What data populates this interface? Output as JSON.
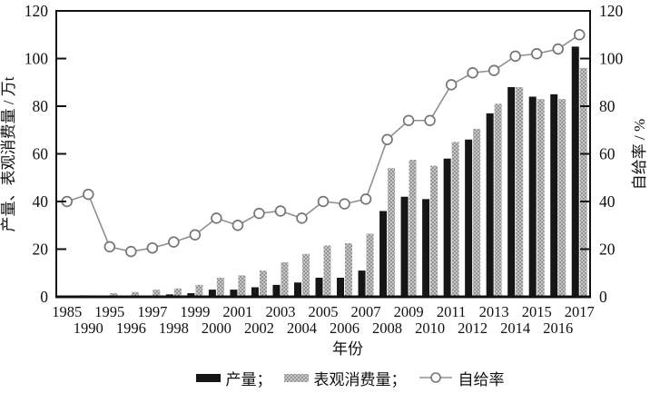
{
  "figure_title": "",
  "chart_data": {
    "type": "combo",
    "x_axis": {
      "label": "年份",
      "categories": [
        "1985",
        "1990",
        "1995",
        "1996",
        "1997",
        "1998",
        "1999",
        "2000",
        "2001",
        "2002",
        "2003",
        "2004",
        "2005",
        "2006",
        "2007",
        "2008",
        "2009",
        "2010",
        "2011",
        "2012",
        "2013",
        "2014",
        "2015",
        "2016",
        "2017"
      ],
      "stagger_rows": true
    },
    "left_axis": {
      "label": "产量、表观消费量 / 万t",
      "min": 0,
      "max": 120,
      "ticks": [
        0,
        20,
        40,
        60,
        80,
        100,
        120
      ]
    },
    "right_axis": {
      "label": "自给率 / %",
      "min": 0,
      "max": 120,
      "ticks": [
        0,
        20,
        40,
        60,
        80,
        100,
        120
      ]
    },
    "grid": false,
    "legend_position": "bottom",
    "series": [
      {
        "name": "产量",
        "kind": "bar",
        "axis": "left",
        "color": "#161616",
        "values": [
          0.4,
          0.6,
          0.3,
          0.4,
          0.5,
          1,
          1.5,
          3,
          3,
          4,
          5,
          6,
          8,
          8,
          11,
          36,
          42,
          41,
          58,
          66,
          77,
          88,
          84,
          85,
          105
        ]
      },
      {
        "name": "表观消费量",
        "kind": "bar",
        "axis": "left",
        "color": "#b5b5b5",
        "texture": "halftone-dots",
        "values": [
          0.4,
          0.6,
          1.5,
          2,
          3,
          3.5,
          5,
          8,
          9,
          11,
          14.5,
          18,
          21.5,
          22.5,
          26.5,
          54,
          57.5,
          55,
          65,
          70.5,
          81,
          88,
          83,
          83,
          96
        ]
      },
      {
        "name": "自给率",
        "kind": "line",
        "axis": "right",
        "color": "#8f8f8f",
        "marker": "open-circle",
        "marker_fill": "#ffffff",
        "marker_stroke": "#757575",
        "values": [
          40,
          43,
          21,
          19,
          20.5,
          23,
          26,
          33,
          30,
          35,
          36,
          33,
          40,
          39,
          41,
          66,
          74,
          74,
          89,
          94,
          95,
          101,
          102,
          104,
          110
        ]
      }
    ]
  },
  "legend": {
    "items": [
      {
        "label": "产量；",
        "swatch": "black-bar"
      },
      {
        "label": "表观消费量；",
        "swatch": "gray-dotted-bar"
      },
      {
        "label": "自给率",
        "swatch": "line-open-circle"
      }
    ]
  },
  "colors": {
    "axis": "#111111",
    "text": "#111111",
    "background": "#ffffff"
  }
}
